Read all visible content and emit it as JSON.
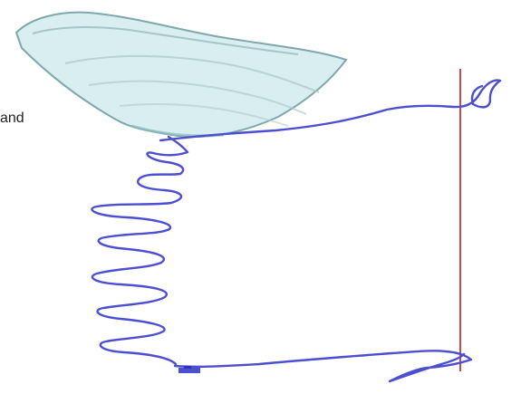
{
  "labels": {
    "fragment": "and"
  },
  "colors": {
    "background": "#ffffff",
    "basket_fill": "#d8eef0",
    "basket_stroke": "#7fa8ad",
    "rope": "#4b4fd0",
    "vertical_line": "#c84a4a"
  }
}
